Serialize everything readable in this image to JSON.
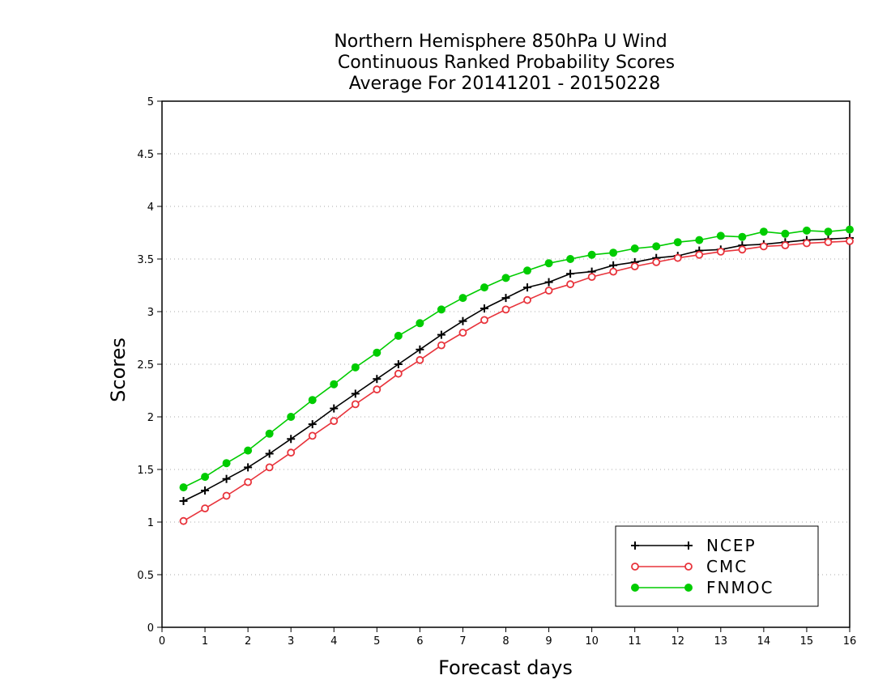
{
  "chart_data": {
    "type": "line",
    "title_lines": [
      "Northern Hemisphere 850hPa U Wind",
      "Continuous Ranked Probability Scores",
      "Average For 20141201 - 20150228"
    ],
    "xlabel": "Forecast days",
    "ylabel": "Scores",
    "xlim": [
      0,
      16
    ],
    "ylim": [
      0,
      5
    ],
    "xticks": [
      "0",
      "1",
      "2",
      "3",
      "4",
      "5",
      "6",
      "7",
      "8",
      "9",
      "10",
      "11",
      "12",
      "13",
      "14",
      "15",
      "16"
    ],
    "yticks": [
      "0",
      "0.5",
      "1",
      "1.5",
      "2",
      "2.5",
      "3",
      "3.5",
      "4",
      "4.5",
      "5"
    ],
    "grid": true,
    "legend_position": "bottom-right",
    "x": [
      0.5,
      1,
      1.5,
      2,
      2.5,
      3,
      3.5,
      4,
      4.5,
      5,
      5.5,
      6,
      6.5,
      7,
      7.5,
      8,
      8.5,
      9,
      9.5,
      10,
      10.5,
      11,
      11.5,
      12,
      12.5,
      13,
      13.5,
      14,
      14.5,
      15,
      15.5,
      16
    ],
    "series": [
      {
        "name": "NCEP",
        "color": "#000000",
        "marker": "plus",
        "values": [
          1.2,
          1.3,
          1.41,
          1.52,
          1.65,
          1.79,
          1.93,
          2.08,
          2.22,
          2.36,
          2.5,
          2.64,
          2.78,
          2.91,
          3.03,
          3.13,
          3.23,
          3.28,
          3.36,
          3.38,
          3.44,
          3.47,
          3.51,
          3.53,
          3.58,
          3.59,
          3.63,
          3.64,
          3.66,
          3.68,
          3.69,
          3.7
        ]
      },
      {
        "name": "CMC",
        "color": "#e8333b",
        "marker": "open-circle",
        "values": [
          1.01,
          1.13,
          1.25,
          1.38,
          1.52,
          1.66,
          1.82,
          1.96,
          2.12,
          2.26,
          2.41,
          2.54,
          2.68,
          2.8,
          2.92,
          3.02,
          3.11,
          3.2,
          3.26,
          3.33,
          3.38,
          3.43,
          3.47,
          3.51,
          3.54,
          3.57,
          3.59,
          3.62,
          3.63,
          3.65,
          3.66,
          3.67
        ]
      },
      {
        "name": "FNMOC",
        "color": "#00cc00",
        "marker": "filled-circle",
        "values": [
          1.33,
          1.43,
          1.56,
          1.68,
          1.84,
          2.0,
          2.16,
          2.31,
          2.47,
          2.61,
          2.77,
          2.89,
          3.02,
          3.13,
          3.23,
          3.32,
          3.39,
          3.46,
          3.5,
          3.54,
          3.56,
          3.6,
          3.62,
          3.66,
          3.68,
          3.72,
          3.71,
          3.76,
          3.74,
          3.77,
          3.76,
          3.78
        ]
      }
    ]
  }
}
